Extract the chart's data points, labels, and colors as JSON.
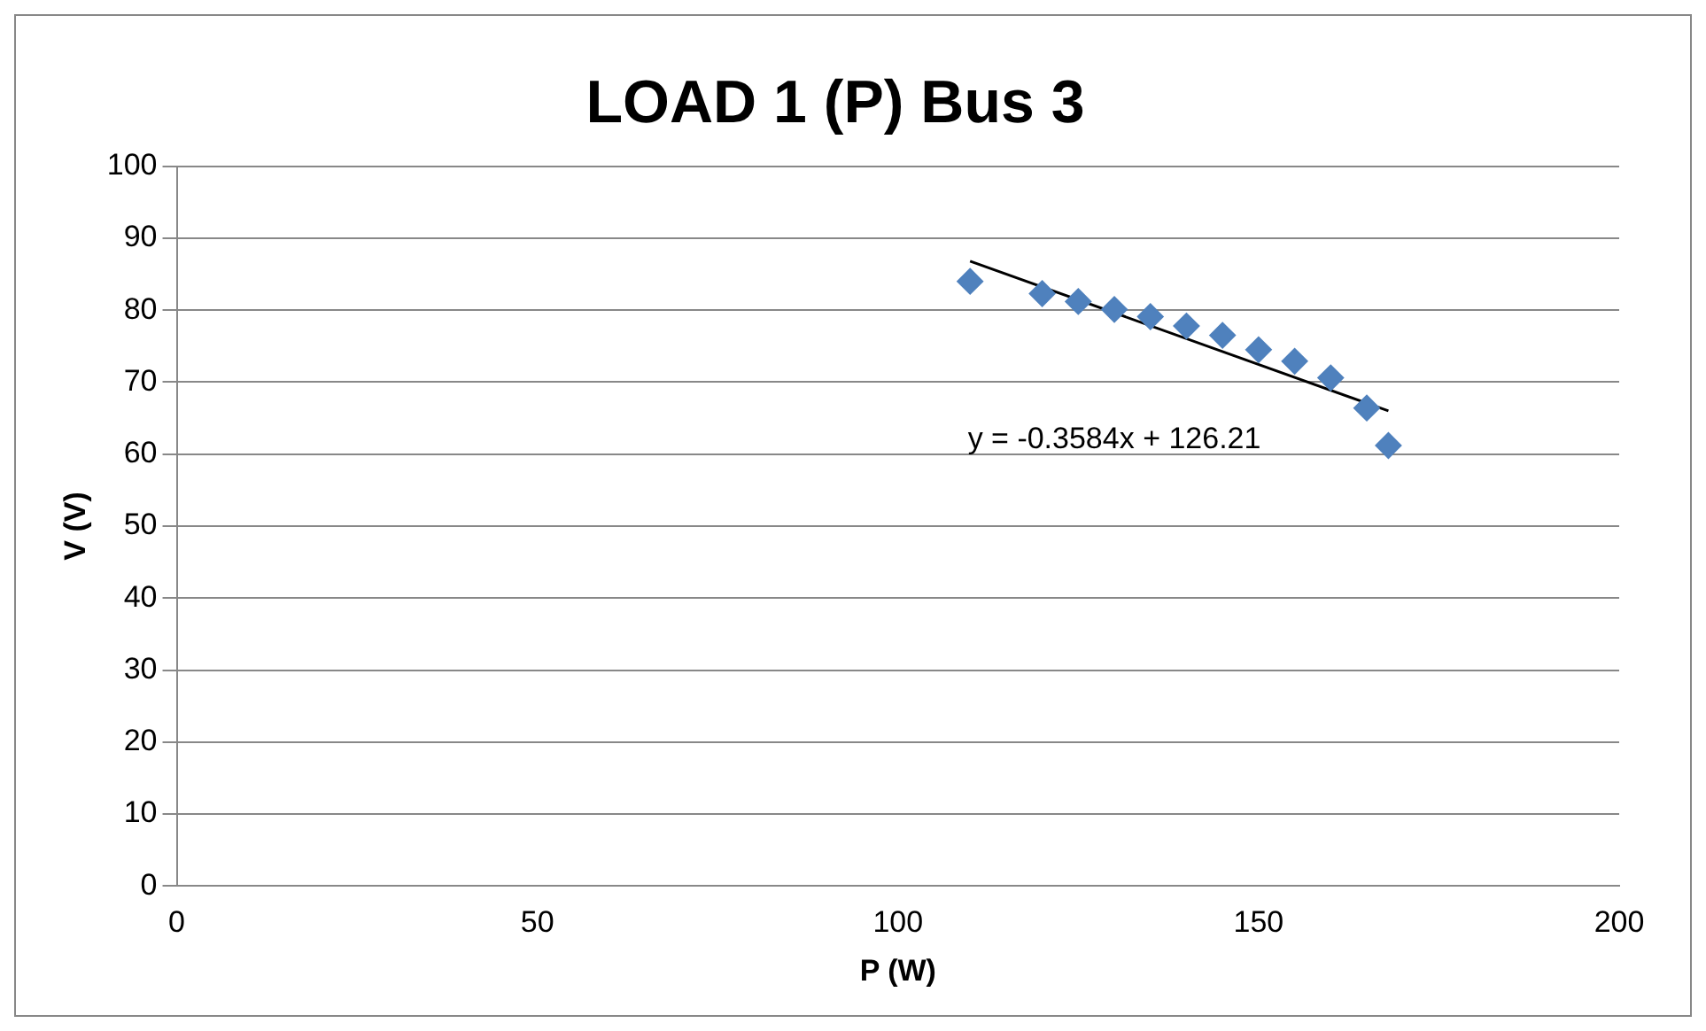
{
  "chart_data": {
    "type": "scatter",
    "title": "LOAD 1 (P) Bus 3",
    "xlabel": "P (W)",
    "ylabel": "V (V)",
    "xlim": [
      0,
      200
    ],
    "xticks": [
      0,
      50,
      100,
      150,
      200
    ],
    "ylim": [
      0,
      100
    ],
    "yticks": [
      0,
      10,
      20,
      30,
      40,
      50,
      60,
      70,
      80,
      90,
      100
    ],
    "grid": "y",
    "legend": false,
    "marker": "diamond",
    "series": [
      {
        "color": "#4f81bd",
        "x": [
          110,
          120,
          125,
          130,
          135,
          140,
          145,
          150,
          155,
          160,
          165,
          168
        ],
        "values": [
          84,
          82.3,
          81.2,
          80.1,
          79.1,
          77.8,
          76.5,
          74.5,
          72.9,
          70.6,
          66.4,
          61.2
        ]
      },
      {
        "type": "line",
        "color": "#000000",
        "x": [
          110,
          168
        ],
        "values": [
          86.8,
          66.0
        ],
        "marker": "none"
      }
    ],
    "annotations": [
      "y = -0.3584x + 126.21"
    ]
  }
}
